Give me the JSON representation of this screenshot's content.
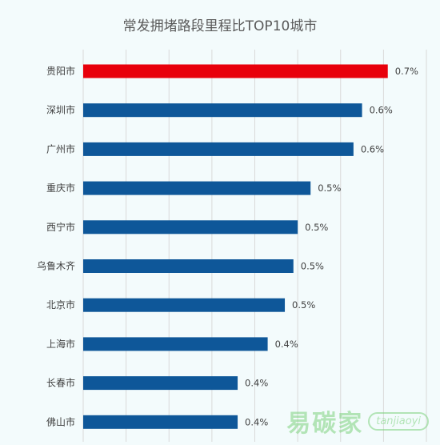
{
  "chart_data": {
    "type": "bar",
    "orientation": "horizontal",
    "title": "常发拥堵路段里程比TOP10城市",
    "categories": [
      "贵阳市",
      "深圳市",
      "广州市",
      "重庆市",
      "西宁市",
      "乌鲁木齐",
      "北京市",
      "上海市",
      "长春市",
      "佛山市"
    ],
    "values": [
      0.71,
      0.65,
      0.63,
      0.53,
      0.5,
      0.49,
      0.47,
      0.43,
      0.36,
      0.36
    ],
    "value_labels": [
      "0.7%",
      "0.6%",
      "0.6%",
      "0.5%",
      "0.5%",
      "0.5%",
      "0.5%",
      "0.4%",
      "0.4%",
      "0.4%"
    ],
    "highlight_index": 0,
    "xlim": [
      0,
      0.8
    ],
    "grid": true,
    "colors": {
      "bar": "#0e5799",
      "highlight": "#e8000b",
      "grid": "#d9d9d9"
    }
  },
  "watermark": {
    "main": "易碳家",
    "pill": "tanjiaoyi"
  }
}
